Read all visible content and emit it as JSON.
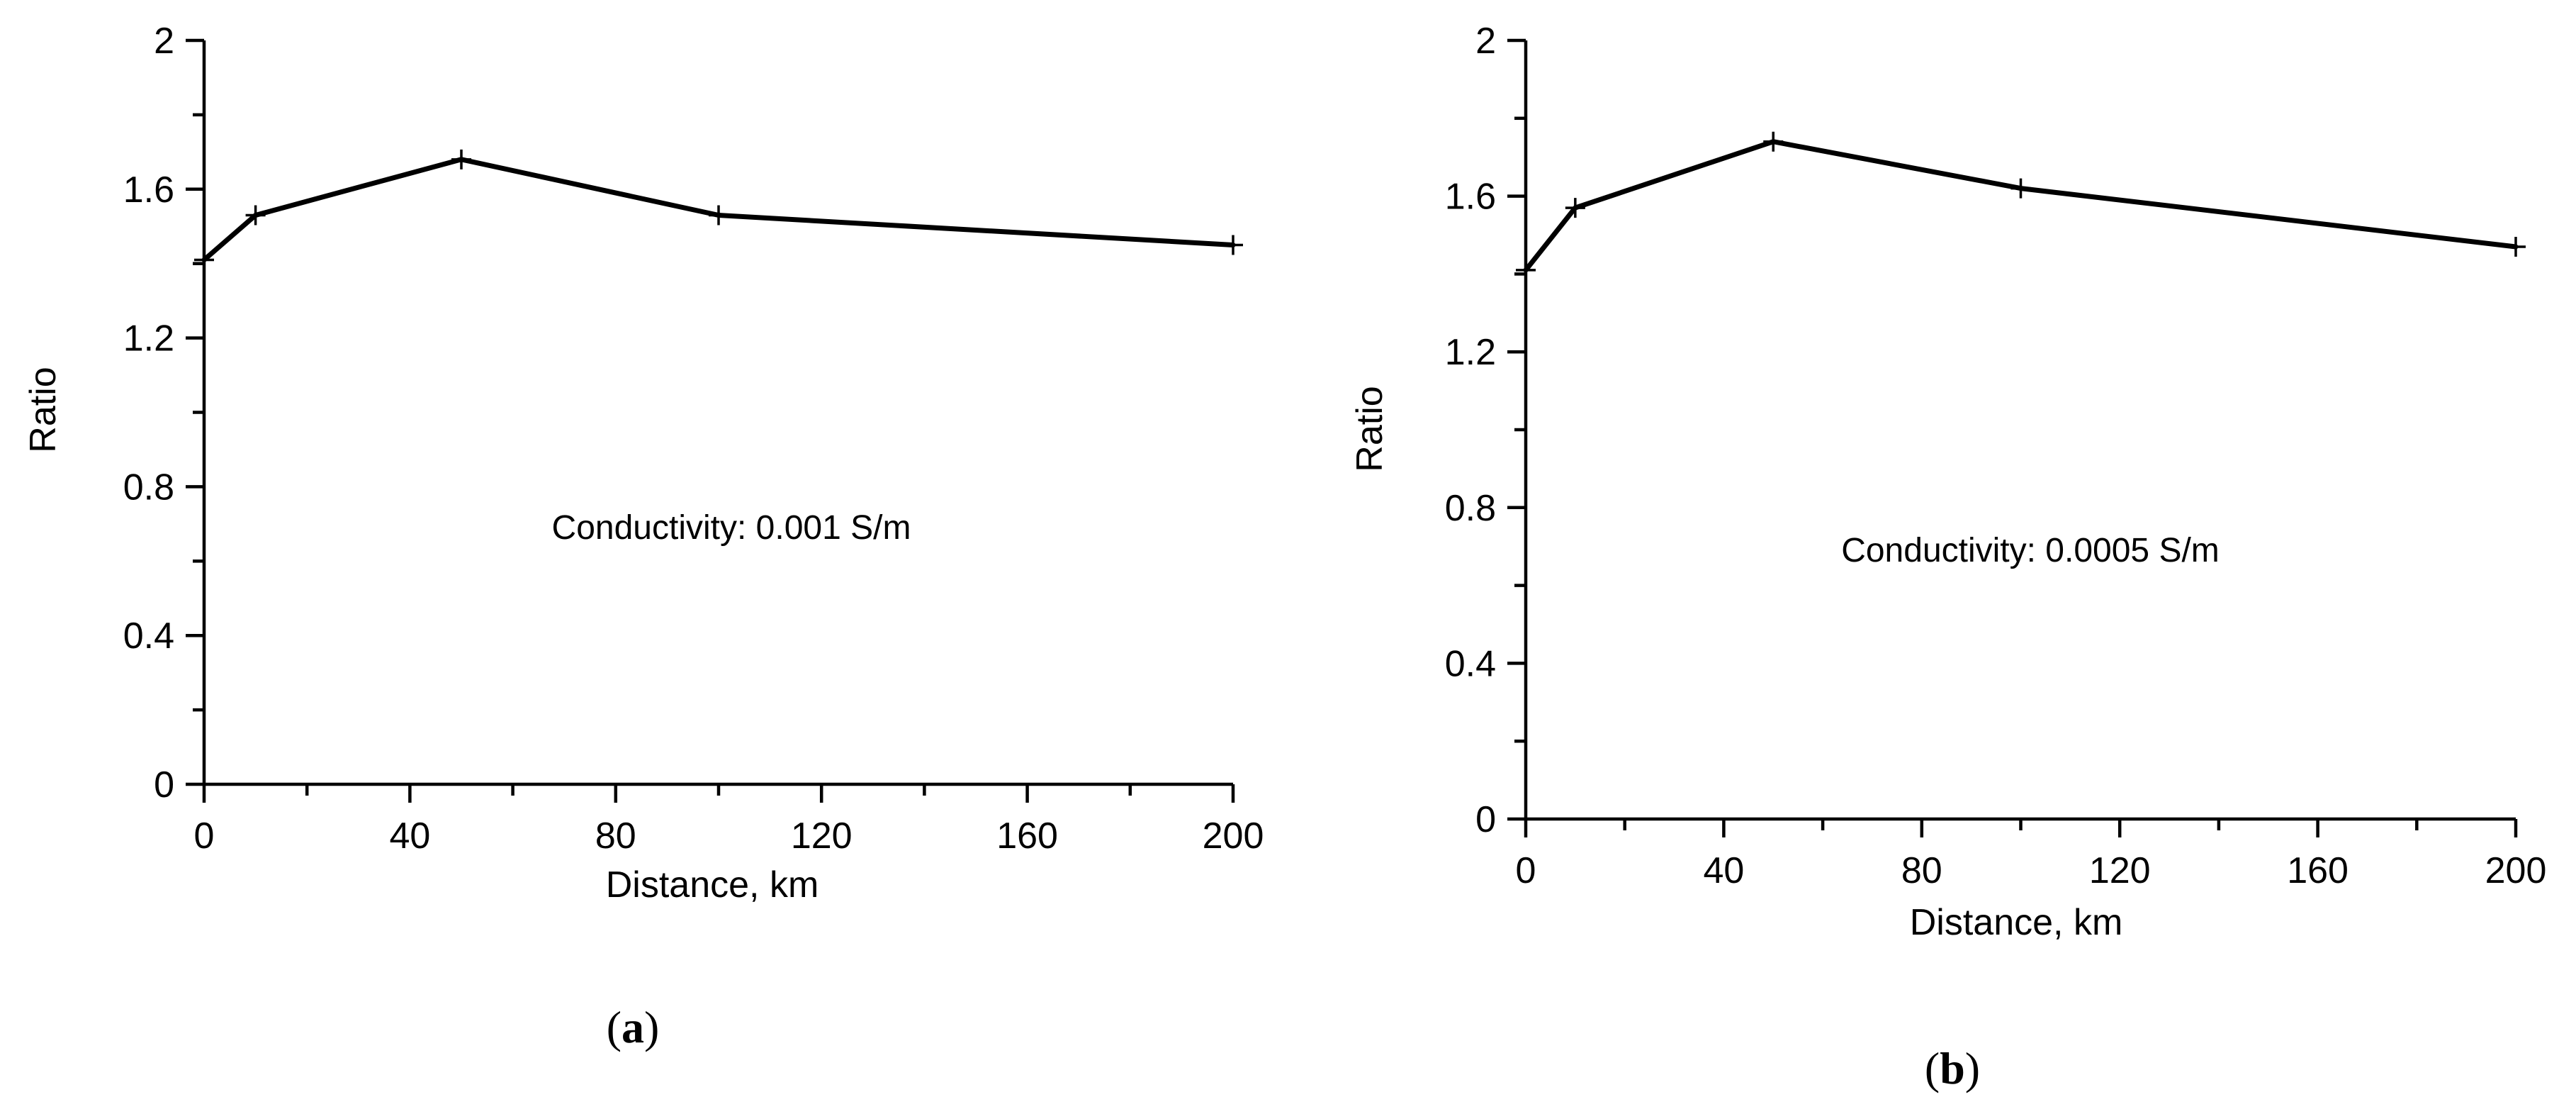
{
  "chart_data": [
    {
      "type": "line",
      "panel_label": "(a)",
      "panel_letter": "a",
      "xlabel": "Distance, km",
      "ylabel": "Ratio",
      "annotation": "Conductivity: 0.001 S/m",
      "xlim": [
        0,
        200
      ],
      "ylim": [
        0,
        2
      ],
      "x_ticks": [
        0,
        40,
        80,
        120,
        160,
        200
      ],
      "x_tick_labels": [
        "0",
        "40",
        "80",
        "120",
        "160",
        "200"
      ],
      "y_ticks": [
        0,
        0.4,
        0.8,
        1.2,
        1.6,
        2
      ],
      "y_tick_labels": [
        "0",
        "0.4",
        "0.8",
        "1.2",
        "1.6",
        "2"
      ],
      "grid": false,
      "series": [
        {
          "x": [
            0,
            10,
            50,
            100,
            200
          ],
          "values": [
            1.41,
            1.53,
            1.68,
            1.53,
            1.45
          ]
        }
      ]
    },
    {
      "type": "line",
      "panel_label": "(b)",
      "panel_letter": "b",
      "xlabel": "Distance, km",
      "ylabel": "Ratio",
      "annotation": "Conductivity: 0.0005 S/m",
      "xlim": [
        0,
        200
      ],
      "ylim": [
        0,
        2
      ],
      "x_ticks": [
        0,
        40,
        80,
        120,
        160,
        200
      ],
      "x_tick_labels": [
        "0",
        "40",
        "80",
        "120",
        "160",
        "200"
      ],
      "y_ticks": [
        0,
        0.4,
        0.8,
        1.2,
        1.6,
        2
      ],
      "y_tick_labels": [
        "0",
        "0.4",
        "0.8",
        "1.2",
        "1.6",
        "2"
      ],
      "grid": false,
      "series": [
        {
          "x": [
            0,
            10,
            50,
            100,
            200
          ],
          "values": [
            1.41,
            1.57,
            1.74,
            1.62,
            1.47
          ]
        }
      ]
    }
  ]
}
